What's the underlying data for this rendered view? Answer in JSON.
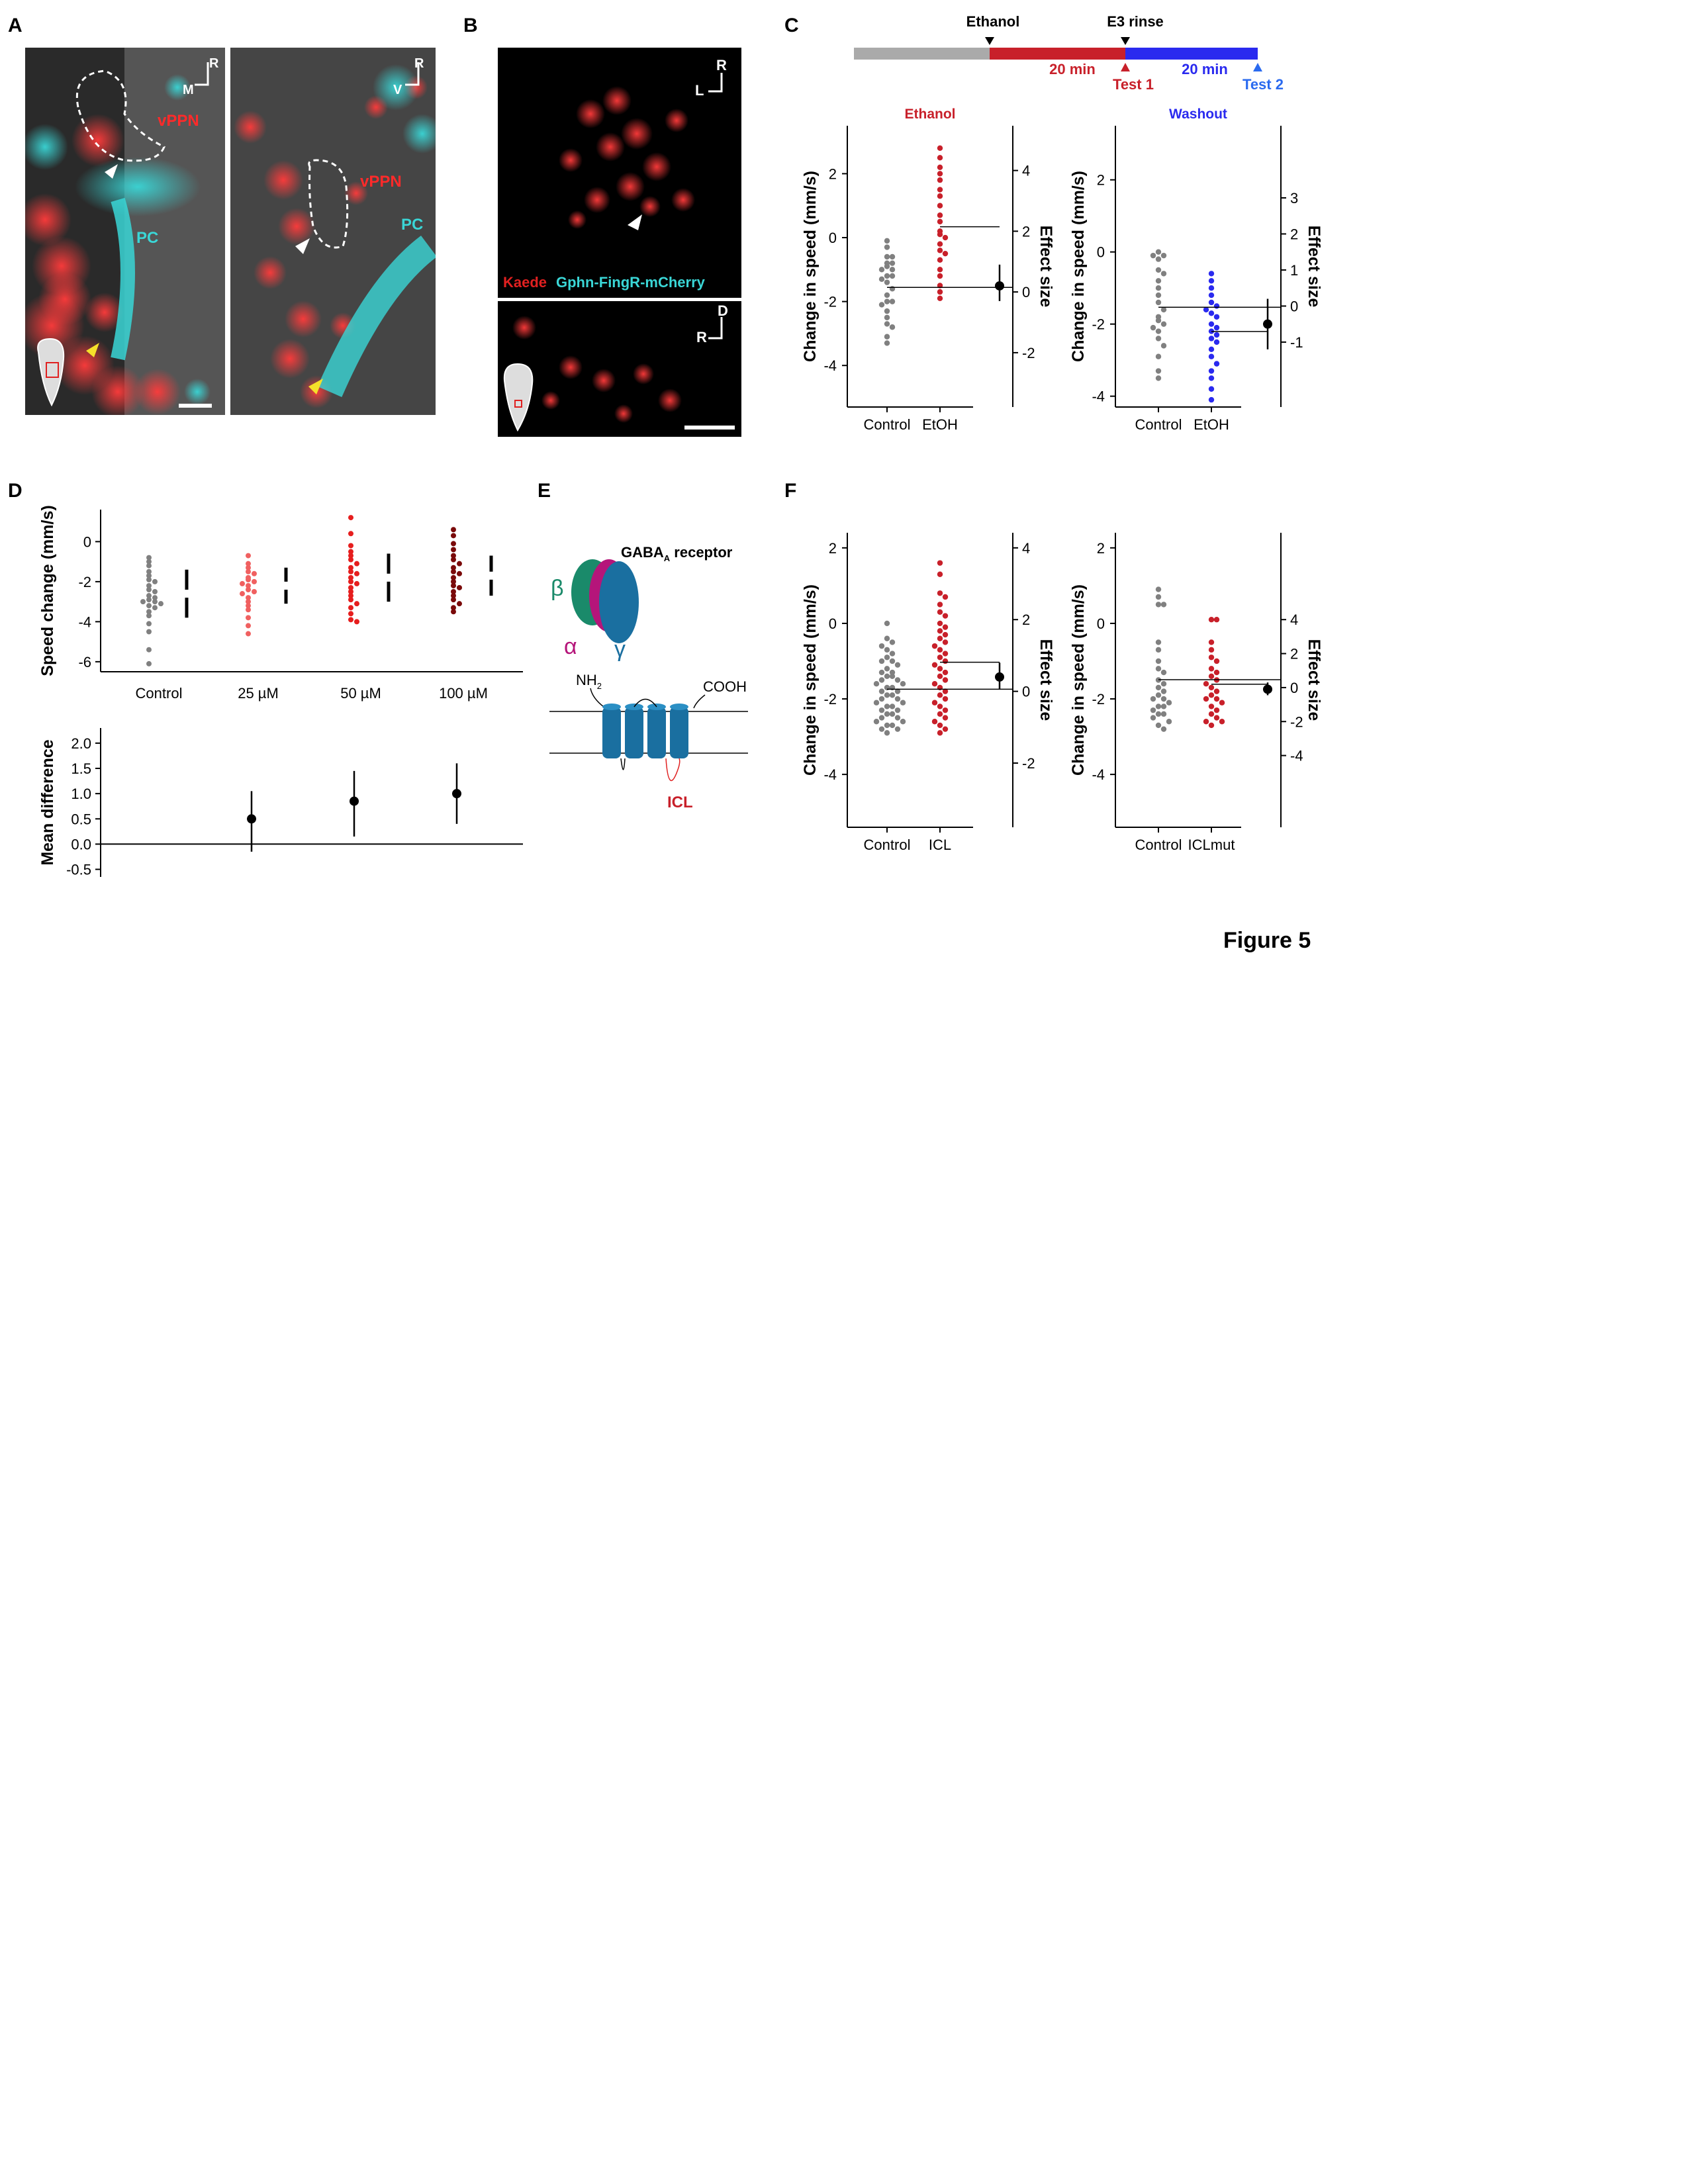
{
  "panels": {
    "a": {
      "letter": "A",
      "left_orient": {
        "up": "R",
        "side": "M"
      },
      "right_orient": {
        "up": "R",
        "side": "V"
      },
      "left_labels": {
        "region": "vPPN",
        "pc": "PC"
      },
      "right_labels": {
        "region": "vPPN",
        "pc": "PC"
      }
    },
    "b": {
      "letter": "B",
      "top_orient": {
        "up": "R",
        "side": "L"
      },
      "bottom_orient": {
        "up": "D",
        "side": "R"
      },
      "legend_red": "Kaede",
      "legend_cyan": "Gphn-FingR-mCherry"
    },
    "c": {
      "letter": "C",
      "timeline": {
        "ethanol_label": "Ethanol",
        "e3_label": "E3 rinse",
        "dur1": "20 min",
        "dur2": "20 min",
        "test1": "Test 1",
        "test2": "Test 2"
      }
    },
    "d": {
      "letter": "D"
    },
    "e": {
      "letter": "E",
      "receptor_main": "GABA",
      "receptor_sub": "A",
      "receptor_rest": " receptor",
      "beta": "β",
      "alpha": "α",
      "gamma": "γ",
      "nh": "NH",
      "nh_sub": "2",
      "cooh": "COOH",
      "icl": "ICL"
    },
    "f": {
      "letter": "F"
    }
  },
  "figure_label": "Figure 5",
  "colors": {
    "control": "#808080",
    "ethanol_red": "#c8202a",
    "washout_blue": "#2a2aef",
    "cyan": "#3ad6d6",
    "receptor_green": "#1a8a6a",
    "receptor_magenta": "#b5157a",
    "receptor_blue": "#1a6fa0",
    "c25": "#f06060",
    "c50": "#e61e1e",
    "c100": "#7a0a0a"
  },
  "chart_data": [
    {
      "id": "c_ethanol",
      "type": "scatter",
      "title": "Ethanol",
      "ylabel": "Change in speed (mm/s)",
      "y2label": "Effect size",
      "categories": [
        "Control",
        "EtOH"
      ],
      "ylim": [
        -5.3,
        3.5
      ],
      "yticks": [
        2,
        0,
        -2,
        -4
      ],
      "y2ticks": [
        4,
        2,
        0,
        -2
      ],
      "y2map": {
        "zero_at": -1.7,
        "unit": 0.95
      },
      "series": [
        {
          "name": "Control",
          "values": [
            -0.1,
            -0.3,
            -0.6,
            -0.6,
            -0.8,
            -0.8,
            -0.9,
            -1.0,
            -1.0,
            -1.2,
            -1.2,
            -1.3,
            -1.4,
            -1.6,
            -1.8,
            -2.0,
            -2.0,
            -2.1,
            -2.3,
            -2.5,
            -2.7,
            -2.8,
            -3.1,
            -3.3
          ]
        },
        {
          "name": "EtOH",
          "values": [
            2.8,
            2.5,
            2.2,
            2.0,
            1.8,
            1.5,
            1.3,
            1.0,
            0.7,
            0.5,
            0.2,
            0.1,
            0.0,
            -0.2,
            -0.4,
            -0.5,
            -0.7,
            -1.0,
            -1.2,
            -1.5,
            -1.7,
            -1.9
          ]
        }
      ],
      "effect": {
        "mean": 0.2,
        "ci": [
          -0.3,
          0.9
        ]
      }
    },
    {
      "id": "c_washout",
      "type": "scatter",
      "title": "Washout",
      "ylabel": "Change in speed (mm/s)",
      "y2label": "Effect size",
      "categories": [
        "Control",
        "EtOH"
      ],
      "ylim": [
        -4.3,
        3.5
      ],
      "yticks": [
        2,
        0,
        -2,
        -4
      ],
      "y2ticks": [
        3,
        2,
        1,
        0,
        -1
      ],
      "y2map": {
        "zero_at": -1.5,
        "unit": 1.0
      },
      "series": [
        {
          "name": "Control",
          "values": [
            0.0,
            -0.1,
            -0.1,
            -0.2,
            -0.5,
            -0.6,
            -0.8,
            -1.0,
            -1.2,
            -1.4,
            -1.6,
            -1.8,
            -1.9,
            -2.0,
            -2.1,
            -2.2,
            -2.4,
            -2.6,
            -2.9,
            -3.3,
            -3.5
          ]
        },
        {
          "name": "EtOH",
          "values": [
            -0.6,
            -0.8,
            -1.0,
            -1.2,
            -1.4,
            -1.5,
            -1.6,
            -1.7,
            -1.8,
            -2.0,
            -2.1,
            -2.2,
            -2.3,
            -2.4,
            -2.5,
            -2.7,
            -2.9,
            -3.1,
            -3.3,
            -3.5,
            -3.8,
            -4.1
          ]
        }
      ],
      "effect": {
        "mean": -0.5,
        "ci": [
          -1.2,
          0.2
        ]
      }
    },
    {
      "id": "d_dose",
      "type": "scatter",
      "ylabel": "Speed change (mm/s)",
      "categories": [
        "Control",
        "25 µM",
        "50 µM",
        "100 µM"
      ],
      "ylim": [
        -6.5,
        1.6
      ],
      "yticks": [
        0,
        -2,
        -4,
        -6
      ],
      "series": [
        {
          "name": "Control",
          "values": [
            -0.8,
            -1.0,
            -1.2,
            -1.5,
            -1.7,
            -1.9,
            -2.0,
            -2.2,
            -2.4,
            -2.5,
            -2.7,
            -2.8,
            -2.9,
            -3.0,
            -3.0,
            -3.1,
            -3.2,
            -3.3,
            -3.5,
            -3.7,
            -4.1,
            -4.5,
            -5.4,
            -6.1
          ]
        },
        {
          "name": "25 µM",
          "values": [
            -0.7,
            -1.1,
            -1.3,
            -1.5,
            -1.6,
            -1.8,
            -1.9,
            -2.0,
            -2.1,
            -2.2,
            -2.4,
            -2.5,
            -2.6,
            -2.8,
            -3.0,
            -3.2,
            -3.4,
            -3.8,
            -4.2,
            -4.6
          ]
        },
        {
          "name": "50 µM",
          "values": [
            1.2,
            0.4,
            -0.2,
            -0.5,
            -0.7,
            -0.9,
            -1.1,
            -1.3,
            -1.5,
            -1.6,
            -1.8,
            -2.0,
            -2.1,
            -2.3,
            -2.5,
            -2.7,
            -2.9,
            -3.1,
            -3.3,
            -3.6,
            -3.9,
            -4.0
          ]
        },
        {
          "name": "100 µM",
          "values": [
            0.6,
            0.3,
            -0.1,
            -0.4,
            -0.7,
            -0.9,
            -1.1,
            -1.3,
            -1.5,
            -1.6,
            -1.8,
            -2.0,
            -2.2,
            -2.3,
            -2.5,
            -2.7,
            -2.9,
            -3.1,
            -3.3,
            -3.5
          ]
        }
      ],
      "sd_bars": [
        {
          "mean": -2.6,
          "sd": 1.2
        },
        {
          "mean": -2.2,
          "sd": 0.9
        },
        {
          "mean": -1.8,
          "sd": 1.2
        },
        {
          "mean": -1.7,
          "sd": 1.0
        }
      ]
    },
    {
      "id": "d_mean_diff",
      "type": "scatter",
      "ylabel": "Mean difference",
      "ylim": [
        -0.65,
        2.3
      ],
      "yticks": [
        2.0,
        1.5,
        1.0,
        0.5,
        0.0,
        -0.5
      ],
      "ytick_labels": [
        "2.0",
        "1.5",
        "1.0",
        "0.5",
        "0.0",
        "-0.5"
      ],
      "points": [
        {
          "category": "25 µM",
          "mean": 0.5,
          "ci": [
            -0.15,
            1.05
          ]
        },
        {
          "category": "50 µM",
          "mean": 0.85,
          "ci": [
            0.15,
            1.45
          ]
        },
        {
          "category": "100 µM",
          "mean": 1.0,
          "ci": [
            0.4,
            1.6
          ]
        }
      ]
    },
    {
      "id": "f_icl",
      "type": "scatter",
      "ylabel": "Change in speed (mm/s)",
      "y2label": "Effect size",
      "categories": [
        "Control",
        "ICL"
      ],
      "ylim": [
        -5.4,
        2.4
      ],
      "yticks": [
        2,
        0,
        -2,
        -4
      ],
      "y2ticks": [
        4,
        2,
        0,
        -2
      ],
      "y2map": {
        "zero_at": -1.8,
        "unit": 0.95
      },
      "series": [
        {
          "name": "Control",
          "values": [
            0.0,
            -0.4,
            -0.5,
            -0.6,
            -0.7,
            -0.8,
            -0.9,
            -1.0,
            -1.0,
            -1.1,
            -1.2,
            -1.3,
            -1.3,
            -1.4,
            -1.4,
            -1.5,
            -1.5,
            -1.6,
            -1.6,
            -1.7,
            -1.7,
            -1.8,
            -1.8,
            -1.9,
            -1.9,
            -2.0,
            -2.0,
            -2.1,
            -2.1,
            -2.2,
            -2.2,
            -2.3,
            -2.3,
            -2.4,
            -2.4,
            -2.5,
            -2.5,
            -2.6,
            -2.6,
            -2.7,
            -2.7,
            -2.8,
            -2.8,
            -2.9
          ]
        },
        {
          "name": "ICL",
          "values": [
            1.6,
            1.3,
            0.8,
            0.7,
            0.5,
            0.3,
            0.2,
            0.0,
            -0.1,
            -0.2,
            -0.3,
            -0.4,
            -0.5,
            -0.6,
            -0.7,
            -0.8,
            -0.9,
            -1.0,
            -1.1,
            -1.2,
            -1.3,
            -1.4,
            -1.5,
            -1.6,
            -1.7,
            -1.8,
            -1.9,
            -2.0,
            -2.1,
            -2.2,
            -2.3,
            -2.4,
            -2.5,
            -2.6,
            -2.7,
            -2.8,
            -2.9
          ]
        }
      ],
      "effect": {
        "mean": 0.4,
        "ci": [
          0.05,
          0.8
        ]
      }
    },
    {
      "id": "f_iclmut",
      "type": "scatter",
      "ylabel": "Change in speed (mm/s)",
      "y2label": "Effect size",
      "categories": [
        "Control",
        "ICLmut"
      ],
      "ylim": [
        -5.4,
        2.4
      ],
      "yticks": [
        2,
        0,
        -2,
        -4
      ],
      "y2ticks": [
        4,
        2,
        0,
        -2,
        -4
      ],
      "y2map": {
        "zero_at": -1.7,
        "unit": 0.45
      },
      "series": [
        {
          "name": "Control",
          "values": [
            0.9,
            0.7,
            0.5,
            0.5,
            -0.5,
            -0.7,
            -1.0,
            -1.2,
            -1.3,
            -1.5,
            -1.6,
            -1.7,
            -1.8,
            -1.9,
            -2.0,
            -2.0,
            -2.1,
            -2.2,
            -2.2,
            -2.3,
            -2.4,
            -2.4,
            -2.5,
            -2.6,
            -2.7,
            -2.8
          ]
        },
        {
          "name": "ICLmut",
          "values": [
            0.1,
            0.1,
            -0.5,
            -0.7,
            -0.9,
            -1.0,
            -1.2,
            -1.3,
            -1.4,
            -1.5,
            -1.6,
            -1.7,
            -1.8,
            -1.9,
            -2.0,
            -2.0,
            -2.1,
            -2.2,
            -2.3,
            -2.4,
            -2.5,
            -2.6,
            -2.6,
            -2.7
          ]
        }
      ],
      "effect": {
        "mean": -0.1,
        "ci": [
          -0.45,
          0.3
        ]
      }
    }
  ]
}
